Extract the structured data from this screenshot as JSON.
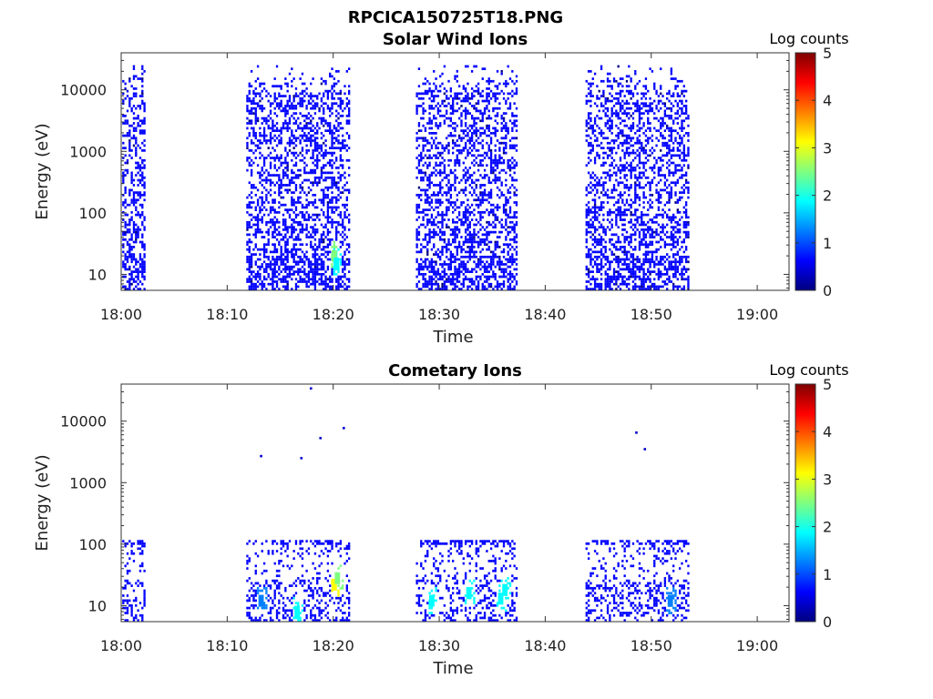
{
  "figure": {
    "title": "RPCICA150725T18.PNG"
  },
  "colormap": [
    "#00007f",
    "#0000ff",
    "#007fff",
    "#00ffff",
    "#7fff7f",
    "#ffff00",
    "#ff7f00",
    "#ff0000",
    "#7f0000"
  ],
  "chart_data": [
    {
      "type": "heatmap",
      "title": "Solar Wind Ions",
      "xlabel": "Time",
      "ylabel": "Energy (eV)",
      "x_ticks": [
        "18:00",
        "18:10",
        "18:20",
        "18:30",
        "18:40",
        "18:50",
        "19:00"
      ],
      "x_tick_minutes": [
        0,
        10,
        20,
        30,
        40,
        50,
        60
      ],
      "xlim_minutes": [
        0,
        63
      ],
      "y_ticks": [
        "10",
        "100",
        "1000",
        "10000"
      ],
      "y_tick_values": [
        10,
        100,
        1000,
        10000
      ],
      "yscale": "log",
      "ylim": [
        5.5,
        40000
      ],
      "colorbar": {
        "label": "Log counts",
        "ticks": [
          "0",
          "1",
          "2",
          "3",
          "4",
          "5"
        ],
        "range": [
          0,
          5
        ]
      },
      "activity_intervals_minutes": [
        [
          0.1,
          2.2
        ],
        [
          11.8,
          21.4
        ],
        [
          27.8,
          37.4
        ],
        [
          43.8,
          53.5
        ]
      ],
      "energy_range_eV": [
        5.5,
        25000
      ],
      "typical_log_counts": 0.3,
      "hotspots": [
        {
          "time_minutes": 20.1,
          "energy_eV": 20,
          "log_counts": 2.3
        },
        {
          "time_minutes": 20.3,
          "energy_eV": 15,
          "log_counts": 1.8
        }
      ]
    },
    {
      "type": "heatmap",
      "title": "Cometary Ions",
      "xlabel": "Time",
      "ylabel": "Energy (eV)",
      "x_ticks": [
        "18:00",
        "18:10",
        "18:20",
        "18:30",
        "18:40",
        "18:50",
        "19:00"
      ],
      "x_tick_minutes": [
        0,
        10,
        20,
        30,
        40,
        50,
        60
      ],
      "xlim_minutes": [
        0,
        63
      ],
      "y_ticks": [
        "10",
        "100",
        "1000",
        "10000"
      ],
      "y_tick_values": [
        10,
        100,
        1000,
        10000
      ],
      "yscale": "log",
      "ylim": [
        5.5,
        40000
      ],
      "colorbar": {
        "label": "Log counts",
        "ticks": [
          "0",
          "1",
          "2",
          "3",
          "4",
          "5"
        ],
        "range": [
          0,
          5
        ]
      },
      "activity_intervals_minutes": [
        [
          0.1,
          2.2
        ],
        [
          11.8,
          21.4
        ],
        [
          27.8,
          37.4
        ],
        [
          43.8,
          53.5
        ]
      ],
      "energy_range_eV": [
        5.5,
        130
      ],
      "typical_log_counts": 0.4,
      "hotspots": [
        {
          "time_minutes": 13.2,
          "energy_eV": 12,
          "log_counts": 1.5
        },
        {
          "time_minutes": 16.6,
          "energy_eV": 8,
          "log_counts": 1.7
        },
        {
          "time_minutes": 20.1,
          "energy_eV": 22,
          "log_counts": 3.3
        },
        {
          "time_minutes": 20.4,
          "energy_eV": 28,
          "log_counts": 2.8
        },
        {
          "time_minutes": 29.3,
          "energy_eV": 12,
          "log_counts": 1.6
        },
        {
          "time_minutes": 32.8,
          "energy_eV": 16,
          "log_counts": 1.7
        },
        {
          "time_minutes": 35.8,
          "energy_eV": 13,
          "log_counts": 1.9
        },
        {
          "time_minutes": 36.2,
          "energy_eV": 18,
          "log_counts": 1.6
        },
        {
          "time_minutes": 51.8,
          "energy_eV": 12,
          "log_counts": 1.5
        }
      ],
      "isolated_points": [
        {
          "time_minutes": 13.2,
          "energy_eV": 2700
        },
        {
          "time_minutes": 17.0,
          "energy_eV": 2500
        },
        {
          "time_minutes": 17.9,
          "energy_eV": 34000
        },
        {
          "time_minutes": 18.8,
          "energy_eV": 5300
        },
        {
          "time_minutes": 21.0,
          "energy_eV": 7700
        },
        {
          "time_minutes": 48.6,
          "energy_eV": 6500
        },
        {
          "time_minutes": 49.4,
          "energy_eV": 3500
        }
      ]
    }
  ]
}
